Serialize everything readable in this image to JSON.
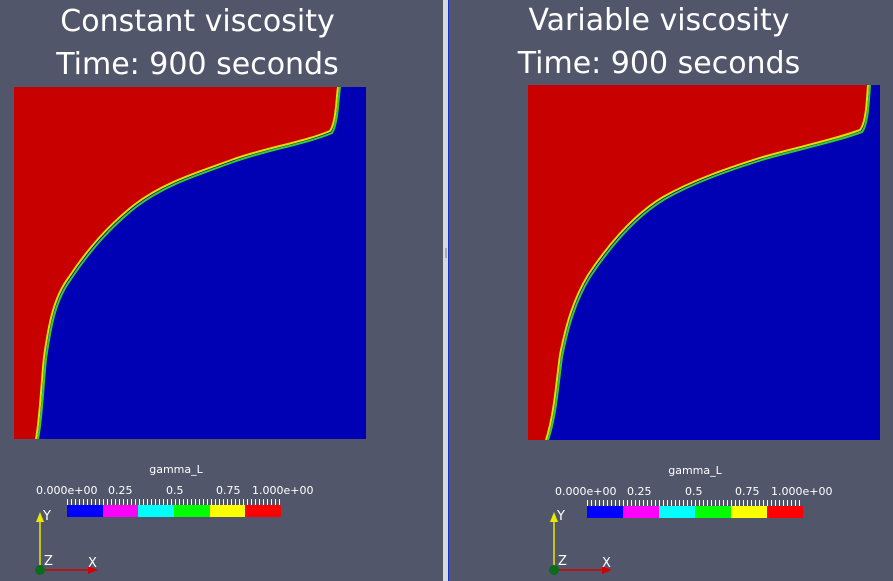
{
  "views": [
    {
      "id": "left",
      "title_line1": "Constant viscosity",
      "title_line2": "Time: 900 seconds"
    },
    {
      "id": "right",
      "title_line1": "Variable viscosity",
      "title_line2": "Time: 900 seconds"
    }
  ],
  "legend": {
    "title": "gamma_L",
    "labels": [
      "0.000e+00",
      "0.25",
      "0.5",
      "0.75",
      "1.000e+00"
    ],
    "colors": [
      "#0000ff",
      "#ff00ff",
      "#00ffff",
      "#00ff00",
      "#ffff00",
      "#ff0000"
    ]
  },
  "axes": {
    "y_label": "Y",
    "z_label": "Z",
    "x_label": "X",
    "y_color": "#e8e800",
    "x_color": "#d40000",
    "origin_color": "#0b6b1a"
  },
  "colors": {
    "background": "#51566b",
    "phase_a": "#c80000",
    "phase_b": "#0000b4",
    "interface": "#55cc22"
  }
}
